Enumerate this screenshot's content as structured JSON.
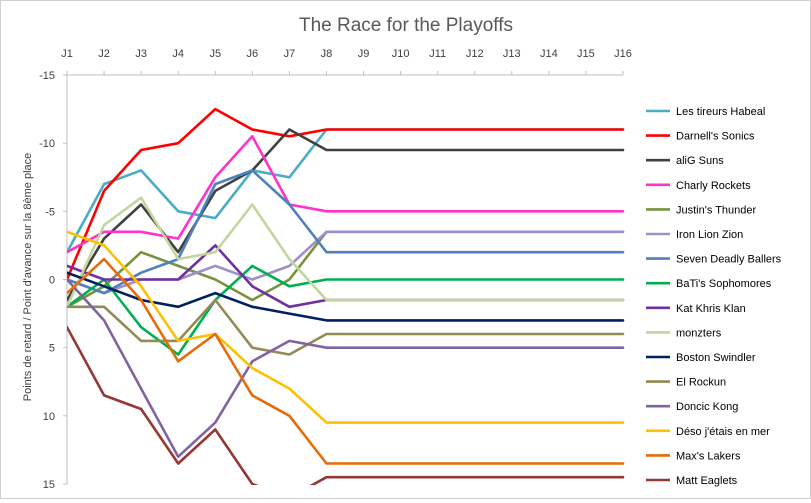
{
  "chart_data": {
    "type": "line",
    "title": "The Race for the Playoffs",
    "xlabel": "",
    "ylabel": "Points de retard / Point d'avance sur la 8ème place",
    "x": [
      "J1",
      "J2",
      "J3",
      "J4",
      "J5",
      "J6",
      "J7",
      "J8",
      "J9",
      "J10",
      "J11",
      "J12",
      "J13",
      "J14",
      "J15",
      "J16"
    ],
    "ylim": [
      15,
      -15
    ],
    "y_reversed": true,
    "yticks": [
      -15,
      -10,
      -5,
      0,
      5,
      10,
      15
    ],
    "x_axis_position": "top",
    "legend_position": "right",
    "grid": false,
    "note": "Series values from J8 onward stay constant through J16.",
    "series": [
      {
        "name": "Les tireurs Habeal",
        "color": "#4BACC6",
        "values": [
          -2,
          -7,
          -8,
          -5,
          -4.5,
          -8,
          -7.5,
          -11,
          -11,
          -11,
          -11,
          -11,
          -11,
          -11,
          -11,
          -11
        ]
      },
      {
        "name": "Darnell's Sonics",
        "color": "#FF0000",
        "values": [
          0,
          -6.5,
          -9.5,
          -10,
          -12.5,
          -11,
          -10.5,
          -11,
          -11,
          -11,
          -11,
          -11,
          -11,
          -11,
          -11,
          -11
        ]
      },
      {
        "name": "aliG Suns",
        "color": "#404040",
        "values": [
          1.5,
          -3,
          -5.5,
          -2,
          -6.5,
          -8,
          -11,
          -9.5,
          -9.5,
          -9.5,
          -9.5,
          -9.5,
          -9.5,
          -9.5,
          -9.5,
          -9.5
        ]
      },
      {
        "name": "Charly Rockets",
        "color": "#FF33CC",
        "values": [
          -2,
          -3.5,
          -3.5,
          -3,
          -7.5,
          -10.5,
          -5.5,
          -5,
          -5,
          -5,
          -5,
          -5,
          -5,
          -5,
          -5,
          -5
        ]
      },
      {
        "name": "Justin's Thunder",
        "color": "#77933C",
        "values": [
          2,
          0.5,
          -2,
          -1,
          0,
          1.5,
          0,
          -3.5,
          -3.5,
          -3.5,
          -3.5,
          -3.5,
          -3.5,
          -3.5,
          -3.5,
          -3.5
        ]
      },
      {
        "name": "Iron Lion Zion",
        "color": "#A18FC7",
        "values": [
          0,
          1,
          0,
          0,
          -1,
          0,
          -1,
          -3.5,
          -3.5,
          -3.5,
          -3.5,
          -3.5,
          -3.5,
          -3.5,
          -3.5,
          -3.5
        ]
      },
      {
        "name": "Seven Deadly Ballers",
        "color": "#4F81BD",
        "values": [
          0,
          1,
          -0.5,
          -1.5,
          -7,
          -8,
          -5.5,
          -2,
          -2,
          -2,
          -2,
          -2,
          -2,
          -2,
          -2,
          -2
        ]
      },
      {
        "name": "BaTi's Sophomores",
        "color": "#00B050",
        "values": [
          2,
          0,
          3.5,
          5.5,
          1.5,
          -1,
          0.5,
          0,
          0,
          0,
          0,
          0,
          0,
          0,
          0,
          0
        ]
      },
      {
        "name": "Kat Khris Klan",
        "color": "#7030A0",
        "values": [
          -1,
          0,
          0,
          0,
          -2.5,
          0.5,
          2,
          1.5,
          1.5,
          1.5,
          1.5,
          1.5,
          1.5,
          1.5,
          1.5,
          1.5
        ]
      },
      {
        "name": "monzters",
        "color": "#C3D69B",
        "values": [
          2,
          -4,
          -6,
          -1.5,
          -2,
          -5.5,
          -1.5,
          1.5,
          1.5,
          1.5,
          1.5,
          1.5,
          1.5,
          1.5,
          1.5,
          1.5
        ]
      },
      {
        "name": "Boston Swindler",
        "color": "#002060",
        "values": [
          -0.5,
          0.5,
          1.5,
          2,
          1,
          2,
          2.5,
          3,
          3,
          3,
          3,
          3,
          3,
          3,
          3,
          3
        ]
      },
      {
        "name": "El Rockun",
        "color": "#948A54",
        "values": [
          2,
          2,
          4.5,
          4.5,
          1.5,
          5,
          5.5,
          4,
          4,
          4,
          4,
          4,
          4,
          4,
          4,
          4
        ]
      },
      {
        "name": "Doncic Kong",
        "color": "#8064A2",
        "values": [
          0,
          3,
          8,
          13,
          10.5,
          6,
          4.5,
          5,
          5,
          5,
          5,
          5,
          5,
          5,
          5,
          5
        ]
      },
      {
        "name": "Déso j'étais en mer",
        "color": "#FFC000",
        "values": [
          -3.5,
          -2.5,
          0.5,
          4.5,
          4,
          6.5,
          8,
          10.5,
          10.5,
          10.5,
          10.5,
          10.5,
          10.5,
          10.5,
          10.5,
          10.5
        ]
      },
      {
        "name": "Max's Lakers",
        "color": "#E46C0A",
        "values": [
          1,
          -1.5,
          1.5,
          6,
          4,
          8.5,
          10,
          13.5,
          13.5,
          13.5,
          13.5,
          13.5,
          13.5,
          13.5,
          13.5,
          13.5
        ]
      },
      {
        "name": "Matt Eaglets",
        "color": "#953735",
        "values": [
          3.5,
          8.5,
          9.5,
          13.5,
          11,
          15,
          16,
          14.5,
          14.5,
          14.5,
          14.5,
          14.5,
          14.5,
          14.5,
          14.5,
          14.5
        ]
      }
    ]
  }
}
